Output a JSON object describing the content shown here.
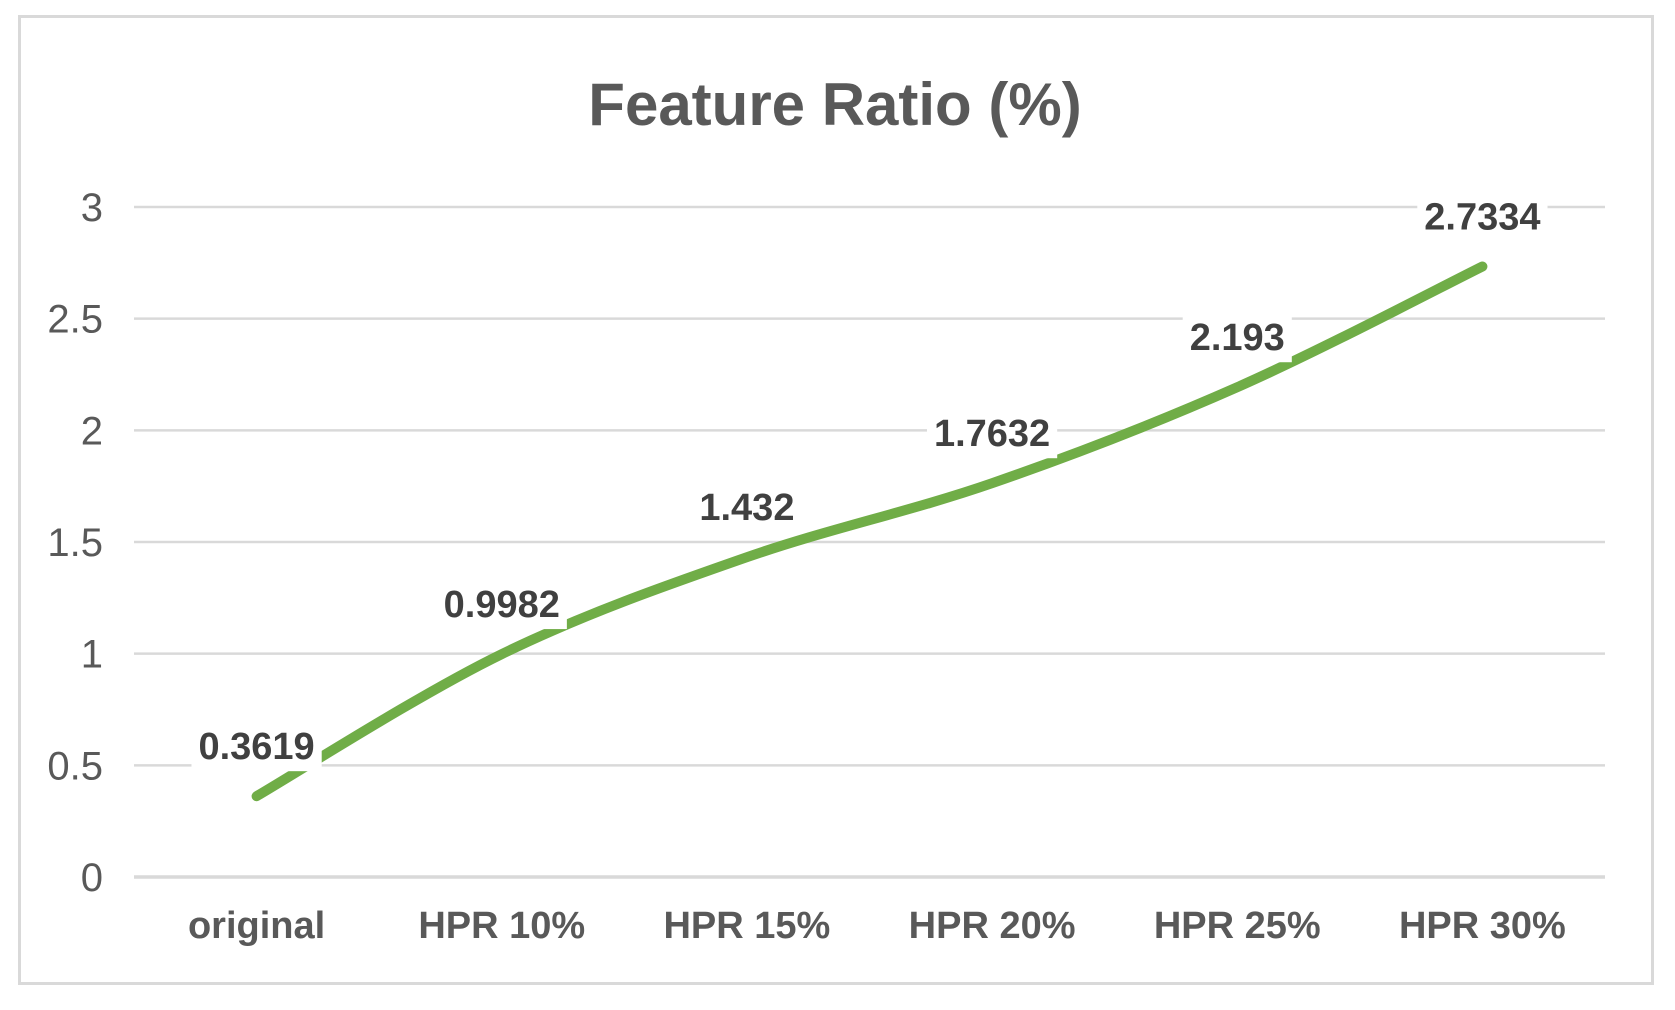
{
  "chart_data": {
    "type": "line",
    "title": "Feature Ratio (%)",
    "categories": [
      "original",
      "HPR 10%",
      "HPR 15%",
      "HPR 20%",
      "HPR 25%",
      "HPR 30%"
    ],
    "series": [
      {
        "name": "Feature Ratio (%)",
        "values": [
          0.3619,
          0.9982,
          1.432,
          1.7632,
          2.193,
          2.7334
        ]
      }
    ],
    "data_labels": [
      "0.3619",
      "0.9982",
      "1.432",
      "1.7632",
      "2.193",
      "2.7334"
    ],
    "xlabel": "",
    "ylabel": "",
    "ylim": [
      0,
      3
    ],
    "y_tick_step": 0.5,
    "y_tick_labels": [
      "0",
      "0.5",
      "1",
      "1.5",
      "2",
      "2.5",
      "3"
    ],
    "grid": "horizontal",
    "legend_position": "none",
    "smooth_line": true,
    "colors": {
      "line": "#70AD47",
      "gridline": "#D9D9D9",
      "frame_border": "#D9D9D9",
      "title_text": "#595959",
      "axis_text": "#595959",
      "data_label_text": "#404040",
      "background": "#FFFFFF"
    }
  }
}
